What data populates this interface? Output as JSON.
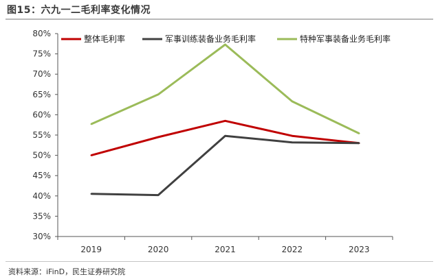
{
  "header": {
    "title": "图15：六九一二毛利率变化情况"
  },
  "footer": {
    "source": "资料来源：iFinD，民生证券研究院"
  },
  "chart_data": {
    "type": "line",
    "title": "图15：六九一二毛利率变化情况",
    "xlabel": "",
    "ylabel": "",
    "categories": [
      "2019",
      "2020",
      "2021",
      "2022",
      "2023"
    ],
    "ylim": [
      30,
      80
    ],
    "yticks": [
      30,
      35,
      40,
      45,
      50,
      55,
      60,
      65,
      70,
      75,
      80
    ],
    "ytick_labels": [
      "30%",
      "35%",
      "40%",
      "45%",
      "50%",
      "55%",
      "60%",
      "65%",
      "70%",
      "75%",
      "80%"
    ],
    "grid": false,
    "legend_position": "top",
    "series": [
      {
        "name": "整体毛利率",
        "color": "#c00000",
        "values": [
          50.0,
          54.5,
          58.5,
          54.8,
          53.0
        ]
      },
      {
        "name": "军事训练装备业务毛利率",
        "color": "#404040",
        "values": [
          40.5,
          40.2,
          54.8,
          53.2,
          53.0
        ]
      },
      {
        "name": "特种军事装备业务毛利率",
        "color": "#9bbb59",
        "values": [
          57.7,
          65.0,
          77.3,
          63.3,
          55.4
        ]
      }
    ]
  }
}
